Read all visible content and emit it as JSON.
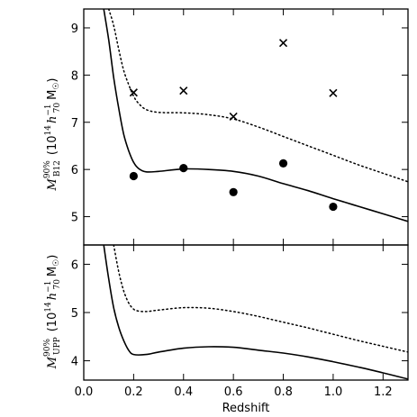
{
  "chart_data": [
    {
      "type": "line",
      "panel": "top",
      "xlim": [
        0.0,
        1.3
      ],
      "ylim": [
        4.4,
        9.4
      ],
      "yticks": [
        5,
        6,
        7,
        8,
        9
      ],
      "ytick_labels": [
        "5",
        "6",
        "7",
        "8",
        "9"
      ],
      "xticks": [
        0.0,
        0.2,
        0.4,
        0.6,
        0.8,
        1.0,
        1.2
      ],
      "ylabel_parts": {
        "symbol": "M",
        "superscript": "90%",
        "subscript": "B12",
        "unit_open": "(10",
        "unit_exp": "14",
        "unit_h": "h",
        "unit_h_exp": "−1",
        "unit_h_sub": "70",
        "unit_msun": "M",
        "unit_close": ")"
      },
      "grid": false,
      "series": [
        {
          "style": "solid",
          "x": [
            0.08,
            0.1,
            0.12,
            0.14,
            0.16,
            0.18,
            0.2,
            0.22,
            0.25,
            0.3,
            0.4,
            0.5,
            0.6,
            0.7,
            0.8,
            0.9,
            1.0,
            1.1,
            1.2,
            1.3
          ],
          "y": [
            9.4,
            8.75,
            7.95,
            7.3,
            6.75,
            6.4,
            6.15,
            6.02,
            5.95,
            5.96,
            6.01,
            6.0,
            5.96,
            5.86,
            5.7,
            5.55,
            5.38,
            5.22,
            5.06,
            4.9
          ]
        },
        {
          "style": "dotted",
          "x": [
            0.1,
            0.12,
            0.14,
            0.16,
            0.18,
            0.2,
            0.22,
            0.25,
            0.3,
            0.4,
            0.5,
            0.6,
            0.7,
            0.8,
            0.9,
            1.0,
            1.1,
            1.2,
            1.3
          ],
          "y": [
            9.4,
            9.05,
            8.55,
            8.1,
            7.8,
            7.55,
            7.4,
            7.27,
            7.21,
            7.2,
            7.16,
            7.07,
            6.9,
            6.7,
            6.5,
            6.3,
            6.1,
            5.92,
            5.74
          ]
        }
      ],
      "points": [
        {
          "marker": "cross",
          "x": [
            0.2,
            0.4,
            0.6,
            0.8,
            1.0
          ],
          "y": [
            7.63,
            7.67,
            7.12,
            8.68,
            7.62
          ]
        },
        {
          "marker": "circle",
          "x": [
            0.2,
            0.4,
            0.6,
            0.8,
            1.0
          ],
          "y": [
            5.86,
            6.03,
            5.52,
            6.13,
            5.21
          ]
        }
      ]
    },
    {
      "type": "line",
      "panel": "bottom",
      "xlim": [
        0.0,
        1.3
      ],
      "ylim": [
        3.6,
        6.4
      ],
      "yticks": [
        4,
        5,
        6
      ],
      "ytick_labels": [
        "4",
        "5",
        "6"
      ],
      "xticks": [
        0.0,
        0.2,
        0.4,
        0.6,
        0.8,
        1.0,
        1.2
      ],
      "xtick_labels": [
        "0.0",
        "0.2",
        "0.4",
        "0.6",
        "0.8",
        "1.0",
        "1.2"
      ],
      "xlabel": "Redshift",
      "ylabel_parts": {
        "symbol": "M",
        "superscript": "90%",
        "subscript": "UPP",
        "unit_open": "(10",
        "unit_exp": "14",
        "unit_h": "h",
        "unit_h_exp": "−1",
        "unit_h_sub": "70",
        "unit_msun": "M",
        "unit_close": ")"
      },
      "grid": false,
      "series": [
        {
          "style": "solid",
          "x": [
            0.08,
            0.1,
            0.12,
            0.14,
            0.16,
            0.18,
            0.2,
            0.25,
            0.3,
            0.4,
            0.5,
            0.6,
            0.7,
            0.8,
            0.9,
            1.0,
            1.1,
            1.2,
            1.3
          ],
          "y": [
            6.4,
            5.7,
            5.1,
            4.7,
            4.42,
            4.22,
            4.13,
            4.13,
            4.18,
            4.26,
            4.29,
            4.28,
            4.22,
            4.16,
            4.08,
            3.98,
            3.87,
            3.75,
            3.62
          ]
        },
        {
          "style": "dotted",
          "x": [
            0.12,
            0.14,
            0.16,
            0.18,
            0.2,
            0.22,
            0.25,
            0.3,
            0.4,
            0.5,
            0.6,
            0.7,
            0.8,
            0.9,
            1.0,
            1.1,
            1.2,
            1.3
          ],
          "y": [
            6.4,
            5.85,
            5.45,
            5.2,
            5.07,
            5.03,
            5.02,
            5.05,
            5.1,
            5.09,
            5.02,
            4.92,
            4.8,
            4.68,
            4.55,
            4.42,
            4.3,
            4.18
          ]
        }
      ]
    }
  ]
}
